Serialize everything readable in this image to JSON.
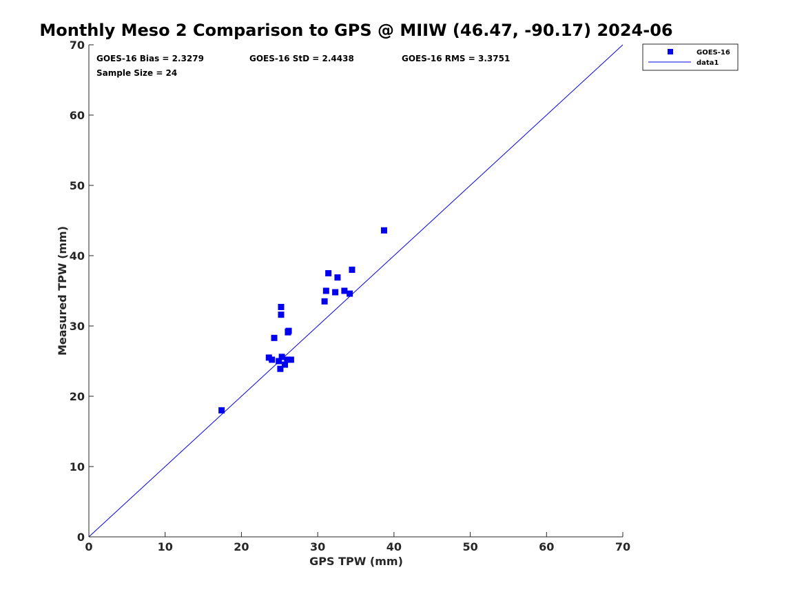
{
  "chart_data": {
    "type": "scatter",
    "title": "Monthly Meso 2 Comparison to GPS @ MIIW (46.47, -90.17) 2024-06",
    "xlabel": "GPS TPW (mm)",
    "ylabel": "Measured TPW (mm)",
    "xlim": [
      0,
      70
    ],
    "ylim": [
      0,
      70
    ],
    "xticks": [
      "0",
      "10",
      "20",
      "30",
      "40",
      "50",
      "60",
      "70"
    ],
    "yticks": [
      "0",
      "10",
      "20",
      "30",
      "40",
      "50",
      "60",
      "70"
    ],
    "grid": false,
    "legend_position": "outside-top-right",
    "stats": {
      "bias": "GOES-16 Bias = 2.3279",
      "std": "GOES-16 StD = 2.4438",
      "rms": "GOES-16 RMS = 3.3751",
      "sample": "Sample Size = 24"
    },
    "series": [
      {
        "name": "GOES-16",
        "marker": "square",
        "color": "#0000ee",
        "x": [
          17.4,
          23.6,
          24.0,
          24.3,
          24.9,
          25.1,
          25.3,
          25.2,
          25.2,
          25.7,
          26.0,
          26.1,
          26.1,
          26.5,
          30.9,
          31.1,
          31.4,
          32.3,
          32.6,
          33.5,
          34.2,
          34.5,
          38.7,
          26.2
        ],
        "y": [
          18.0,
          25.5,
          25.2,
          28.3,
          25.0,
          23.9,
          25.6,
          31.6,
          32.7,
          24.5,
          25.2,
          29.1,
          29.2,
          25.2,
          33.5,
          35.0,
          37.5,
          34.8,
          36.9,
          35.0,
          34.6,
          38.0,
          43.6,
          29.3
        ]
      },
      {
        "name": "data1",
        "kind": "line",
        "color": "#0000ee",
        "x": [
          0,
          70
        ],
        "y": [
          0,
          70
        ]
      }
    ]
  }
}
